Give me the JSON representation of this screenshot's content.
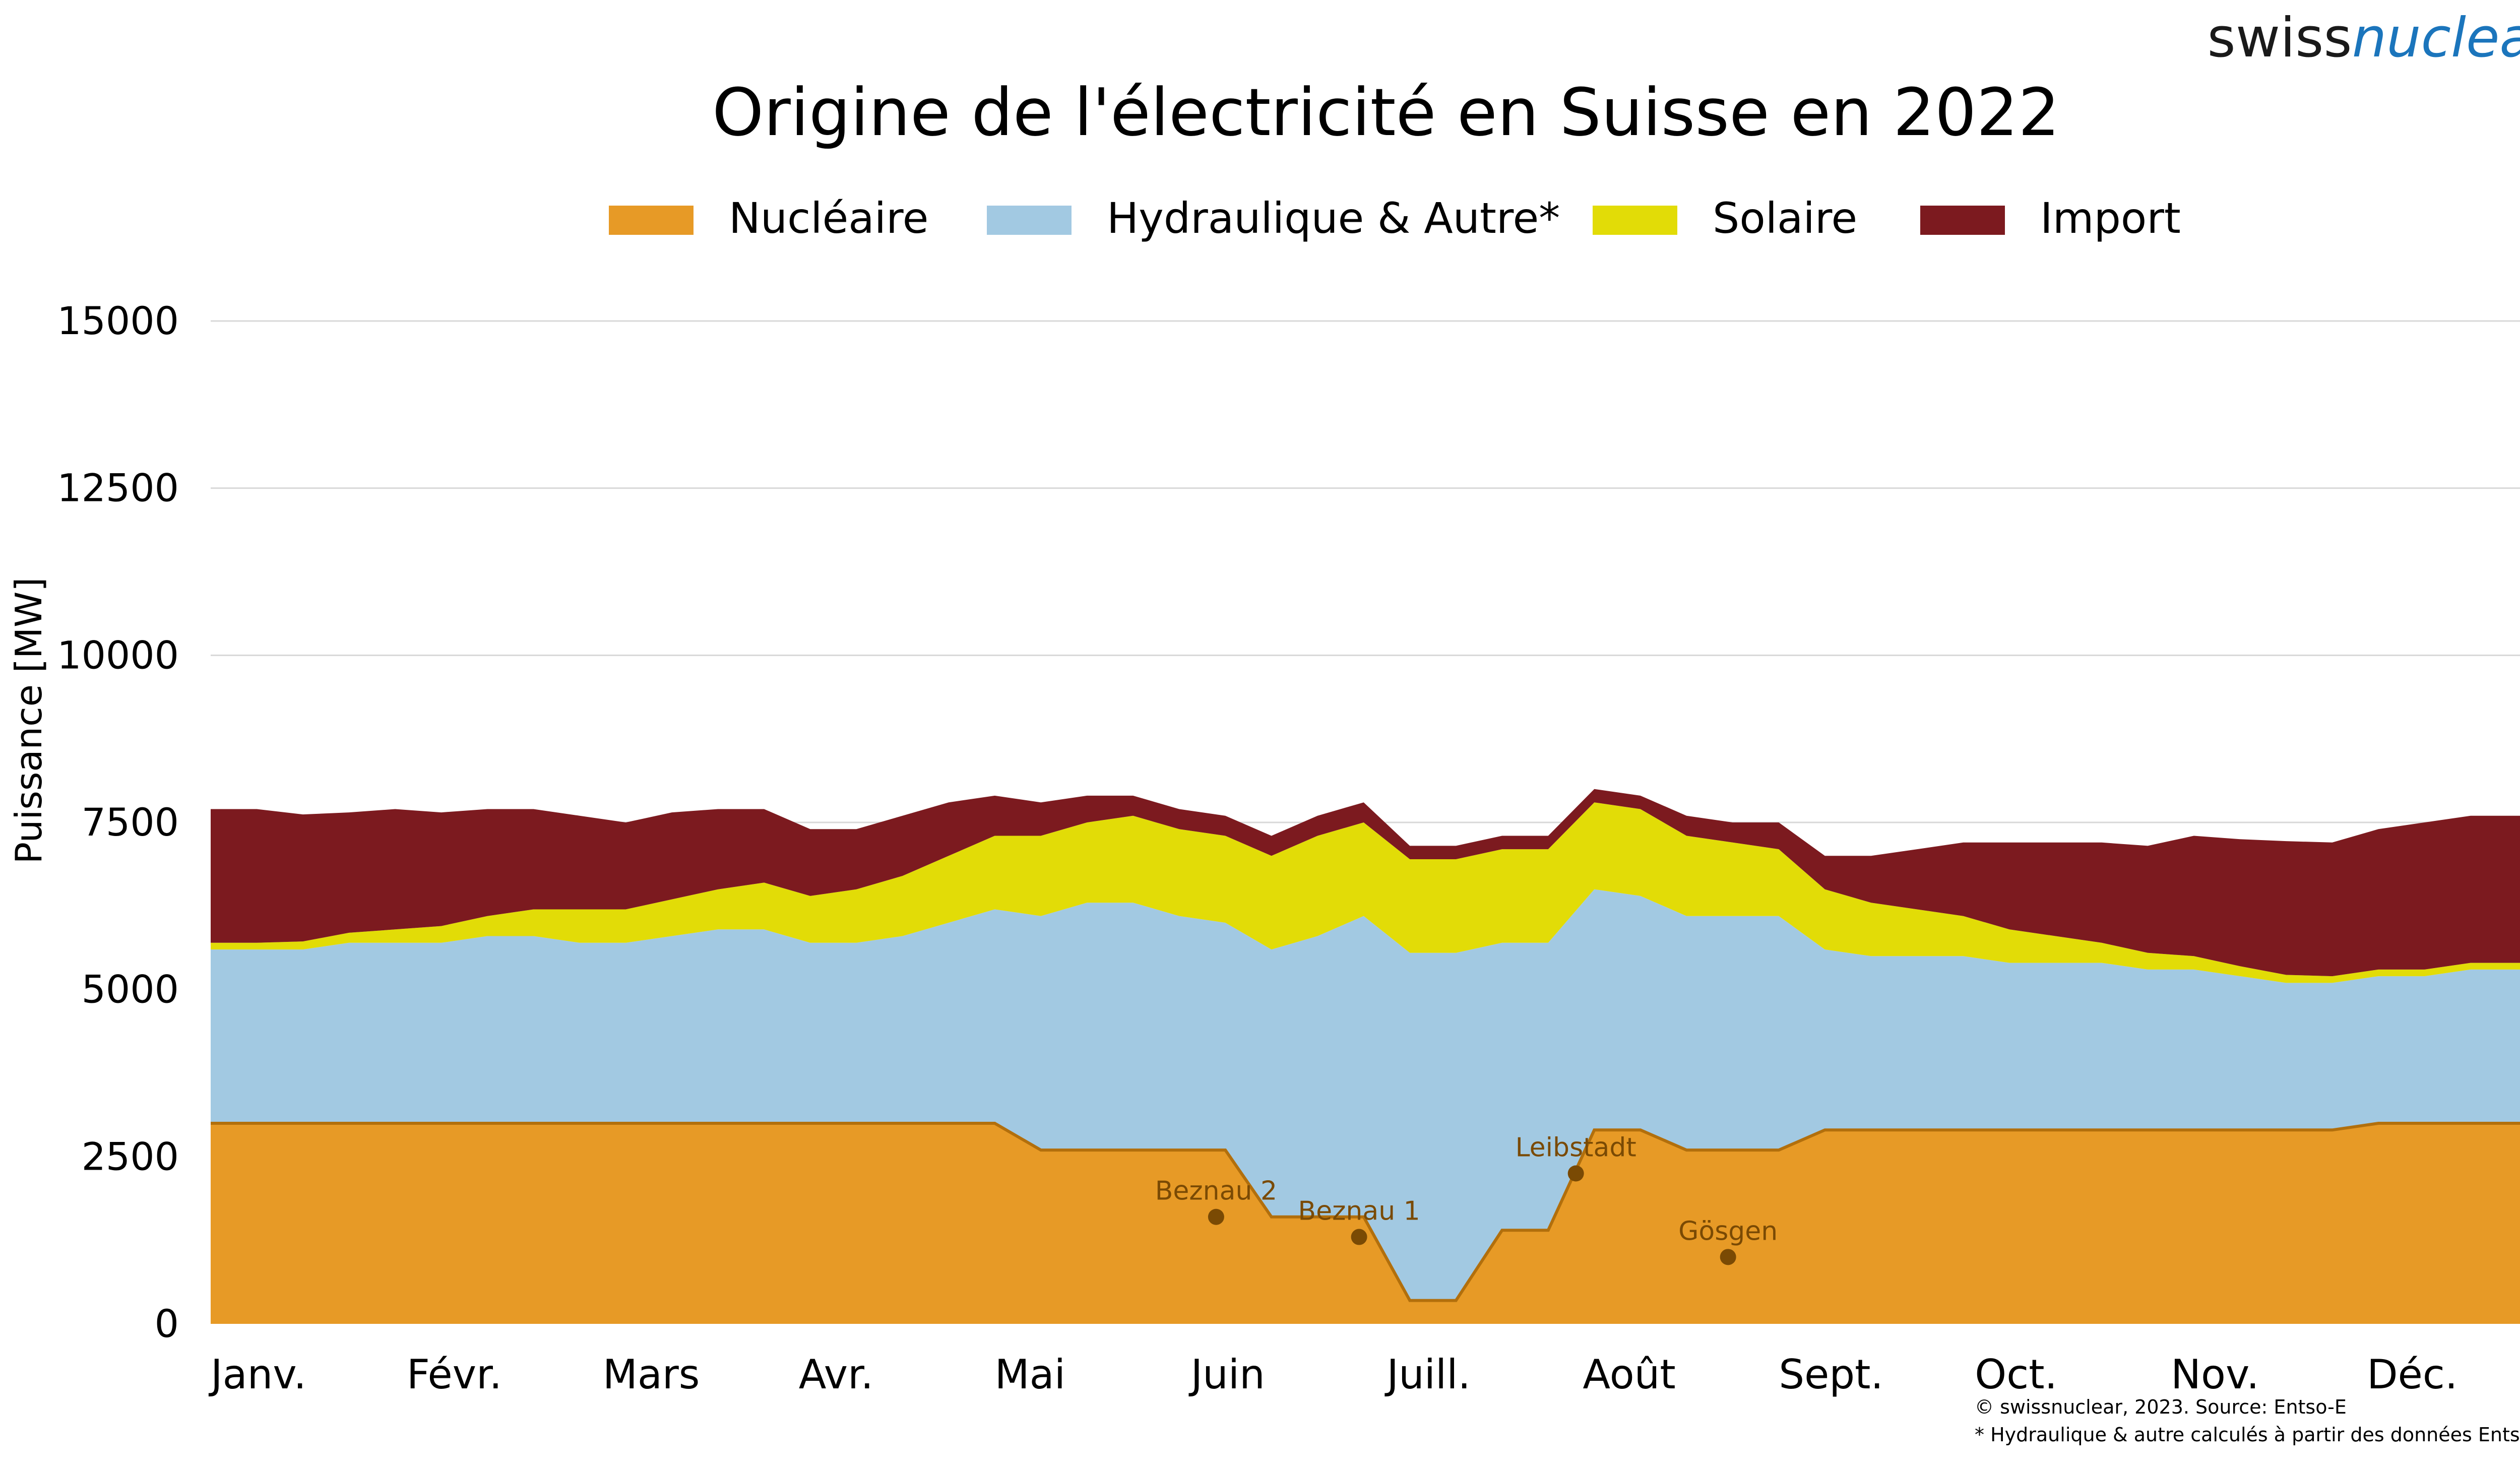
{
  "brand": {
    "part1": "swiss",
    "part2": "nuclear",
    "color1": "#1a1a1a",
    "color2": "#1b75bc"
  },
  "colors": {
    "nuclear": "#e79a26",
    "nuclear_line": "#b26f0c",
    "hydro": "#a2c9e2",
    "solar": "#e2dc07",
    "import": "#7c1a1f",
    "grid": "#d8d8d8",
    "annotation": "#7a4a04"
  },
  "footnotes": {
    "source": "© swissnuclear, 2023. Source: Entso-E",
    "note": "* Hydraulique & autre calculés à partir des données Entso-E"
  },
  "chart_data": {
    "type": "area",
    "title": "Origine de l'électricité en Suisse en 2022",
    "ylabel": "Puissance [MW]",
    "xlabel": "",
    "ylim": [
      0,
      15000
    ],
    "yticks": [
      "0",
      "2500",
      "5000",
      "7500",
      "10000",
      "12500",
      "15000"
    ],
    "grid": true,
    "legend_position": "top",
    "months": [
      "Janv.",
      "Févr.",
      "Mars",
      "Avr.",
      "Mai",
      "Juin",
      "Juill.",
      "Août",
      "Sept.",
      "Oct.",
      "Nov.",
      "Déc."
    ],
    "x_unit": "week of 2022",
    "x": [
      1,
      2,
      3,
      4,
      5,
      6,
      7,
      8,
      9,
      10,
      11,
      12,
      13,
      14,
      15,
      16,
      17,
      18,
      19,
      20,
      21,
      22,
      23,
      24,
      25,
      26,
      27,
      28,
      29,
      30,
      31,
      32,
      33,
      34,
      35,
      36,
      37,
      38,
      39,
      40,
      41,
      42,
      43,
      44,
      45,
      46,
      47,
      48,
      49,
      50,
      51,
      52
    ],
    "series": [
      {
        "name": "Nucléaire",
        "key": "nuclear",
        "values": [
          3000,
          3000,
          3000,
          3000,
          3000,
          3000,
          3000,
          3000,
          3000,
          3000,
          3000,
          3000,
          3000,
          3000,
          3000,
          3000,
          3000,
          3000,
          2600,
          2600,
          2600,
          2600,
          2600,
          1600,
          1600,
          1600,
          350,
          350,
          1400,
          1400,
          2900,
          2900,
          2600,
          2600,
          2600,
          2900,
          2900,
          2900,
          2900,
          2900,
          2900,
          2900,
          2900,
          2900,
          2900,
          2900,
          2900,
          3000,
          3000,
          3000,
          3000,
          3000
        ]
      },
      {
        "name": "Hydraulique & Autre*",
        "key": "hydro",
        "values": [
          2600,
          2600,
          2600,
          2700,
          2700,
          2700,
          2800,
          2800,
          2700,
          2700,
          2800,
          2900,
          2900,
          2700,
          2700,
          2800,
          3000,
          3200,
          3500,
          3700,
          3700,
          3500,
          3400,
          4000,
          4200,
          4500,
          5200,
          5200,
          4300,
          4300,
          3600,
          3500,
          3500,
          3500,
          3500,
          2700,
          2600,
          2600,
          2600,
          2500,
          2500,
          2500,
          2400,
          2400,
          2300,
          2200,
          2200,
          2200,
          2200,
          2300,
          2300,
          2300
        ]
      },
      {
        "name": "Solaire",
        "key": "solar",
        "values": [
          100,
          100,
          120,
          150,
          200,
          250,
          300,
          400,
          500,
          500,
          550,
          600,
          700,
          700,
          800,
          900,
          1000,
          1100,
          1200,
          1200,
          1300,
          1300,
          1300,
          1400,
          1500,
          1400,
          1400,
          1400,
          1400,
          1400,
          1300,
          1300,
          1200,
          1100,
          1000,
          900,
          800,
          700,
          600,
          500,
          400,
          300,
          250,
          200,
          150,
          120,
          100,
          100,
          100,
          100,
          100,
          100
        ]
      },
      {
        "name": "Import",
        "key": "import",
        "values": [
          2000,
          2000,
          1900,
          1800,
          1800,
          1700,
          1600,
          1500,
          1400,
          1300,
          1300,
          1200,
          1100,
          1000,
          900,
          900,
          800,
          600,
          500,
          400,
          300,
          300,
          300,
          300,
          300,
          300,
          200,
          200,
          200,
          200,
          200,
          200,
          300,
          300,
          400,
          500,
          700,
          900,
          1100,
          1300,
          1400,
          1500,
          1600,
          1800,
          1900,
          2000,
          2000,
          2100,
          2200,
          2200,
          2200,
          2200
        ]
      }
    ],
    "annotations": [
      {
        "label": "Beznau 2",
        "week": 22.8,
        "value": 1600
      },
      {
        "label": "Beznau 1",
        "week": 25.9,
        "value": 1300
      },
      {
        "label": "Leibstadt",
        "week": 30.6,
        "value": 2250
      },
      {
        "label": "Gösgen",
        "week": 33.9,
        "value": 1000
      }
    ]
  }
}
